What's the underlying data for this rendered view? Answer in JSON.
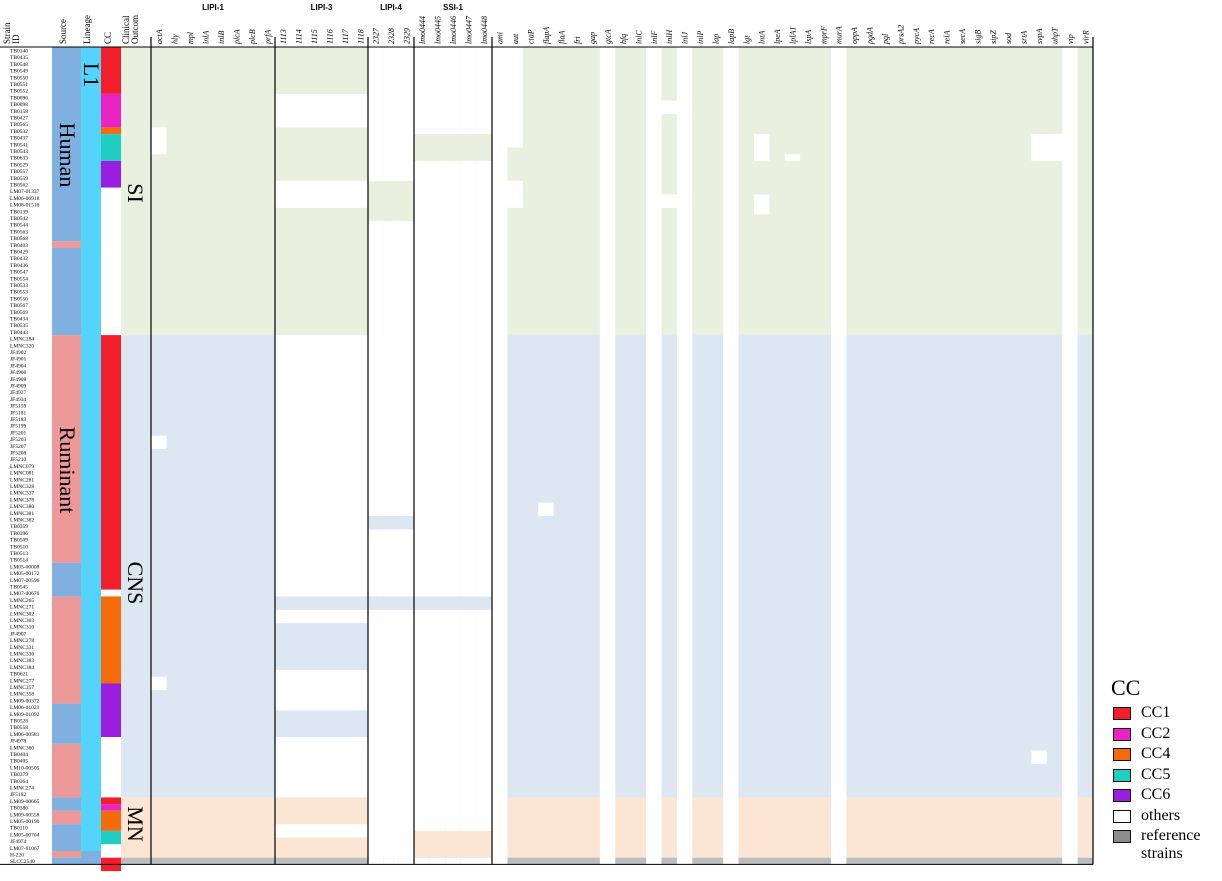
{
  "chart_data": {
    "type": "heatmap",
    "left_columns": [
      "Strain ID",
      "Source",
      "Lineage",
      "CC",
      "Clinical Outcom"
    ],
    "groups": [
      {
        "label": "LIPI-1",
        "genes": [
          "actA",
          "hly",
          "mpl",
          "inlA",
          "inlB",
          "plcA",
          "plcB",
          "prfA"
        ]
      },
      {
        "label": "LIPI-3",
        "genes": [
          "1113",
          "1114",
          "1115",
          "1116",
          "1117",
          "1118"
        ]
      },
      {
        "label": "LIPI-4",
        "genes": [
          "2327",
          "2328",
          "2329"
        ]
      },
      {
        "label": "SSI-1",
        "genes": [
          "lmo0444",
          "lmo0445",
          "lmo0446",
          "lmo0447",
          "lmo0448"
        ]
      },
      {
        "label": "",
        "genes": [
          "ami",
          "aut",
          "ctaP",
          "flapA",
          "flaA",
          "fri",
          "gap",
          "gtcA",
          "hfq",
          "inlC",
          "inlF",
          "inlH",
          "inlJ",
          "inlP",
          "lap",
          "lapB",
          "lgt",
          "lntA",
          "lpeA",
          "lplA1",
          "lspA",
          "mprF",
          "murA",
          "oppA",
          "pgdA",
          "pgl",
          "prsA2",
          "pycA",
          "recA",
          "relA",
          "secA",
          "sigB",
          "sipZ",
          "sod",
          "srtA",
          "svpA",
          "uhpT",
          "vip",
          "virR"
        ]
      }
    ],
    "strains": [
      "TB0140",
      "TB0435",
      "TB0548",
      "TB0549",
      "TB0550",
      "TB0551",
      "TB0552",
      "TB0096",
      "TB0098",
      "TB0158",
      "TB0427",
      "TB0565",
      "TB0532",
      "TB0437",
      "TB0541",
      "TB0543",
      "TB0633",
      "TB0529",
      "TB0557",
      "TB0559",
      "TB0562",
      "LM07-01337",
      "LM06-00918",
      "LM08-01516",
      "TB0139",
      "TB0542",
      "TB0544",
      "TB0563",
      "TB0568",
      "TB0403",
      "TB0429",
      "TB0432",
      "TB0436",
      "TB0547",
      "TB0554",
      "TB0533",
      "TB0553",
      "TB0556",
      "TB0567",
      "TB0569",
      "TB0434",
      "TB0535",
      "TB0443",
      "LMNC284",
      "LMNC320",
      "JF4902",
      "JF4901",
      "JF4904",
      "JF4906",
      "JF4908",
      "JF4909",
      "JF4927",
      "JF4934",
      "JF5159",
      "JF5181",
      "JF5183",
      "JF5199",
      "JF5201",
      "JF5203",
      "JF5207",
      "JF5208",
      "JF5210",
      "LMNC079",
      "LMNC081",
      "LMNC281",
      "LMNC328",
      "LMNC337",
      "LMNC378",
      "LMNC380",
      "LMNC381",
      "LMNC382",
      "TB0359",
      "TB0396",
      "TB0509",
      "TB0510",
      "TB0513",
      "TB0514",
      "LM05-00008",
      "LM05-00172",
      "LM07-00596",
      "TB0545",
      "LM07-00676",
      "LMNC265",
      "LMNC271",
      "LMNC302",
      "LMNC303",
      "LMNC316",
      "JF4907",
      "LMNC278",
      "LMNC331",
      "LMNC336",
      "LMNC383",
      "LMNC384",
      "TB0621",
      "LMNC277",
      "LMNC357",
      "LMNC358",
      "LM09-00372",
      "LM06-01023",
      "LM09-01092",
      "TB0528",
      "TB0558",
      "LM06-00581",
      "JF4978",
      "LMNC360",
      "TB0404",
      "TB0405",
      "LM10-00505",
      "TB0379",
      "TB0364",
      "LMNC274",
      "JF5182",
      "LM09-00665",
      "TB0386",
      "LM09-00558",
      "LM05-00190",
      "TB0110",
      "LM05-00704",
      "JF4974",
      "LM07-01067",
      "H-220",
      "SLCC2540"
    ],
    "source_labels": [
      "Human",
      "Ruminant"
    ],
    "lineage_label": "L1",
    "outcome_labels": [
      "SI",
      "CNS",
      "MN"
    ],
    "colors": {
      "si_band": "#e9f0df",
      "cns_band": "#dce7f1",
      "mn_band": "#fbe5d4",
      "reference_band": "#bdbdbd",
      "human_source": "#7fb0e0",
      "ruminant_source": "#ee9999",
      "lineage": "#55d4fb",
      "CC1": "#f21f2a",
      "CC2": "#ea24c2",
      "CC4": "#f56b0b",
      "CC5": "#1ecfc1",
      "CC6": "#9a1ee0",
      "others": "#ffffff",
      "reference": "#8c8c8c"
    },
    "legend": {
      "title": "CC",
      "items": [
        {
          "label": "CC1",
          "color": "#f21f2a"
        },
        {
          "label": "CC2",
          "color": "#ea24c2"
        },
        {
          "label": "CC4",
          "color": "#f56b0b"
        },
        {
          "label": "CC5",
          "color": "#1ecfc1"
        },
        {
          "label": "CC6",
          "color": "#9a1ee0"
        },
        {
          "label": "others",
          "color": "#ffffff"
        },
        {
          "label": "reference\nstrains",
          "color": "#8c8c8c"
        }
      ],
      "placement": "bottom-right"
    }
  }
}
